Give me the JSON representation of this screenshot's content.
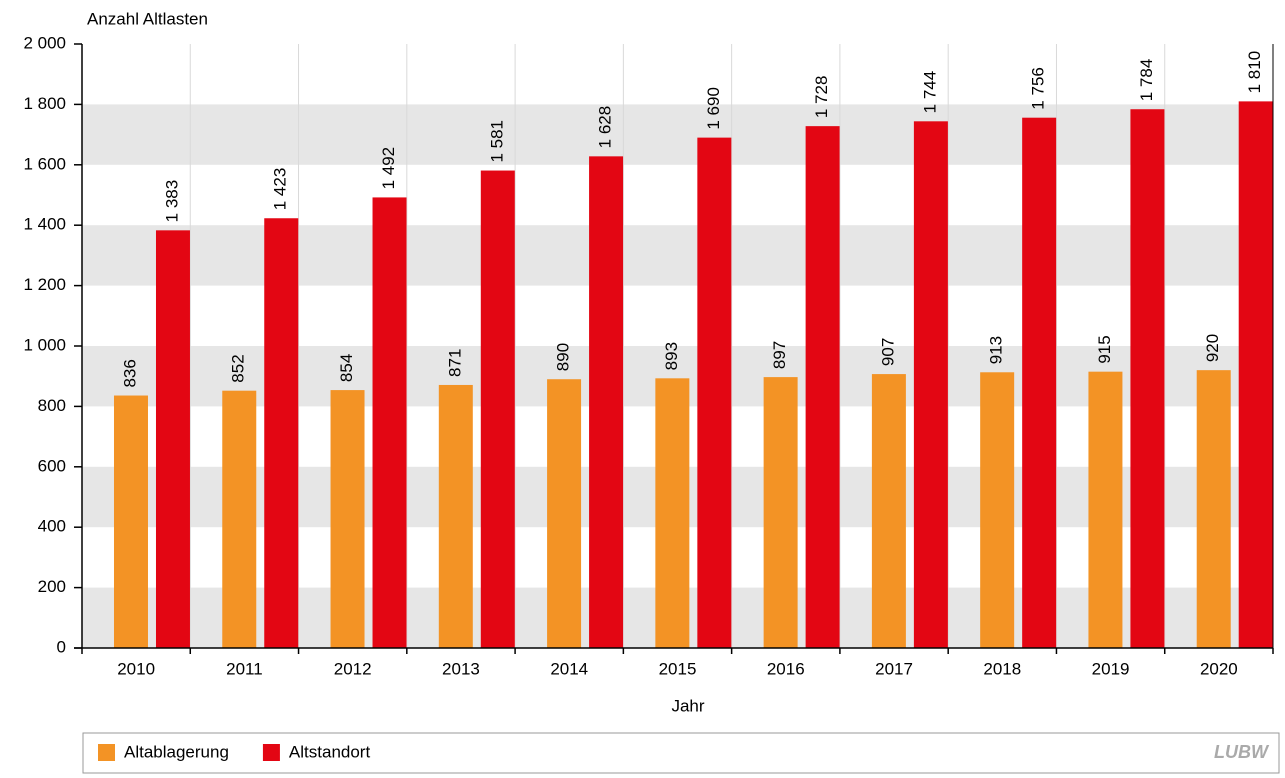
{
  "chart_data": {
    "type": "bar",
    "y_axis_label": "Anzahl Altlasten",
    "x_axis_label": "Jahr",
    "categories": [
      "2010",
      "2011",
      "2012",
      "2013",
      "2014",
      "2015",
      "2016",
      "2017",
      "2018",
      "2019",
      "2020"
    ],
    "series": [
      {
        "name": "Altablagerung",
        "color": "#f39325",
        "values": [
          836,
          852,
          854,
          871,
          890,
          893,
          897,
          907,
          913,
          915,
          920
        ],
        "value_labels": [
          "836",
          "852",
          "854",
          "871",
          "890",
          "893",
          "897",
          "907",
          "913",
          "915",
          "920"
        ]
      },
      {
        "name": "Altstandort",
        "color": "#e30613",
        "values": [
          1383,
          1423,
          1492,
          1581,
          1628,
          1690,
          1728,
          1744,
          1756,
          1784,
          1810
        ],
        "value_labels": [
          "1 383",
          "1 423",
          "1 492",
          "1 581",
          "1 628",
          "1 690",
          "1 728",
          "1 744",
          "1 756",
          "1 784",
          "1 810"
        ]
      }
    ],
    "ylim": [
      0,
      2000
    ],
    "yticks": [
      0,
      200,
      400,
      600,
      800,
      {
        "value": 1000,
        "label": "1 000"
      },
      {
        "value": 1200,
        "label": "1 200"
      },
      {
        "value": 1400,
        "label": "1 400"
      },
      {
        "value": 1600,
        "label": "1 600"
      },
      {
        "value": 1800,
        "label": "1 800"
      },
      {
        "value": 2000,
        "label": "2 000"
      }
    ],
    "grid": true,
    "legend": "bottom",
    "logo": "LUBW"
  }
}
